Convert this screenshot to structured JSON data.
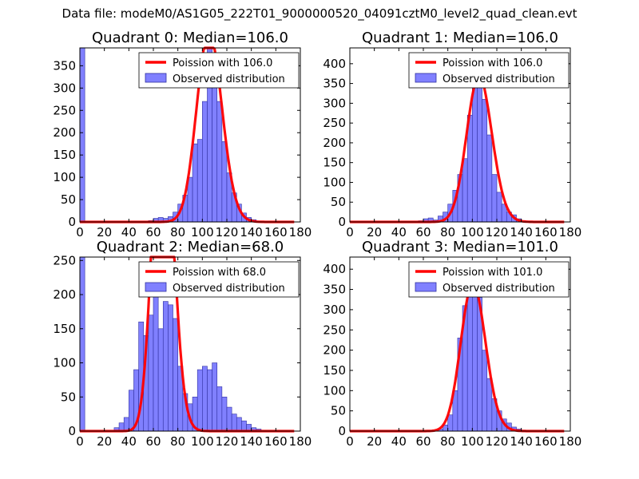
{
  "figure_title": "Data file: modeM0/AS1G05_222T01_9000000520_04091cztM0_level2_quad_clean.evt",
  "colors": {
    "poisson": "#ff0000",
    "bars_fill": "#8080ff",
    "bars_edge": "#3030a0",
    "axis": "#000000"
  },
  "chart_data": [
    {
      "type": "bar",
      "title": "Quadrant 0: Median=106.0",
      "median": 106.0,
      "xlim": [
        0,
        180
      ],
      "ylim": [
        0,
        390
      ],
      "xticks": [
        0,
        20,
        40,
        60,
        80,
        100,
        120,
        140,
        160,
        180
      ],
      "yticks": [
        0,
        50,
        100,
        150,
        200,
        250,
        300,
        350
      ],
      "legend": {
        "location": "top-right",
        "entries": [
          "Poission with 106.0",
          "Observed distribution"
        ]
      },
      "bin_width": 4,
      "bins_start": [
        0,
        56,
        60,
        64,
        68,
        72,
        76,
        80,
        84,
        88,
        92,
        96,
        100,
        104,
        108,
        112,
        116,
        120,
        124,
        128,
        132,
        136,
        140,
        144
      ],
      "counts": [
        390,
        3,
        8,
        10,
        8,
        12,
        22,
        40,
        60,
        100,
        175,
        185,
        270,
        390,
        370,
        270,
        180,
        110,
        65,
        40,
        20,
        10,
        5,
        2
      ],
      "poisson_lambda": 106.0
    },
    {
      "type": "bar",
      "title": "Quadrant 1: Median=106.0",
      "median": 106.0,
      "xlim": [
        0,
        180
      ],
      "ylim": [
        0,
        440
      ],
      "xticks": [
        0,
        20,
        40,
        60,
        80,
        100,
        120,
        140,
        160,
        180
      ],
      "yticks": [
        0,
        50,
        100,
        150,
        200,
        250,
        300,
        350,
        400
      ],
      "legend": {
        "location": "top-right",
        "entries": [
          "Poission with 106.0",
          "Observed distribution"
        ]
      },
      "bin_width": 4,
      "bins_start": [
        56,
        60,
        64,
        68,
        72,
        76,
        80,
        84,
        88,
        92,
        96,
        100,
        104,
        108,
        112,
        116,
        120,
        124,
        128,
        132,
        136,
        140,
        144
      ],
      "counts": [
        3,
        8,
        10,
        5,
        15,
        25,
        45,
        80,
        120,
        160,
        270,
        410,
        400,
        310,
        220,
        120,
        75,
        45,
        25,
        18,
        8,
        3,
        2
      ],
      "poisson_lambda": 106.0
    },
    {
      "type": "bar",
      "title": "Quadrant 2: Median=68.0",
      "median": 68.0,
      "xlim": [
        0,
        180
      ],
      "ylim": [
        0,
        255
      ],
      "xticks": [
        0,
        20,
        40,
        60,
        80,
        100,
        120,
        140,
        160,
        180
      ],
      "yticks": [
        0,
        50,
        100,
        150,
        200,
        250
      ],
      "legend": {
        "location": "top-right",
        "entries": [
          "Poission with 68.0",
          "Observed distribution"
        ]
      },
      "bin_width": 4,
      "bins_start": [
        0,
        28,
        32,
        36,
        40,
        44,
        48,
        52,
        56,
        60,
        64,
        68,
        72,
        76,
        80,
        84,
        88,
        92,
        96,
        100,
        104,
        108,
        112,
        116,
        120,
        124,
        128,
        132,
        136,
        140,
        144
      ],
      "counts": [
        255,
        5,
        12,
        20,
        60,
        90,
        160,
        140,
        170,
        200,
        150,
        190,
        185,
        165,
        95,
        55,
        40,
        50,
        90,
        95,
        90,
        100,
        65,
        50,
        35,
        25,
        20,
        15,
        10,
        5,
        3
      ],
      "poisson_lambda": 68.0
    },
    {
      "type": "bar",
      "title": "Quadrant 3: Median=101.0",
      "median": 101.0,
      "xlim": [
        0,
        180
      ],
      "ylim": [
        0,
        430
      ],
      "xticks": [
        0,
        20,
        40,
        60,
        80,
        100,
        120,
        140,
        160,
        180
      ],
      "yticks": [
        0,
        50,
        100,
        150,
        200,
        250,
        300,
        350,
        400
      ],
      "legend": {
        "location": "top-right",
        "entries": [
          "Poission with 101.0",
          "Observed distribution"
        ]
      },
      "bin_width": 4,
      "bins_start": [
        72,
        76,
        80,
        84,
        88,
        92,
        96,
        100,
        104,
        108,
        112,
        116,
        120,
        124,
        128,
        132,
        136,
        140
      ],
      "counts": [
        5,
        15,
        40,
        100,
        230,
        310,
        340,
        400,
        330,
        200,
        130,
        80,
        50,
        30,
        20,
        10,
        5,
        2
      ],
      "poisson_lambda": 101.0
    }
  ]
}
